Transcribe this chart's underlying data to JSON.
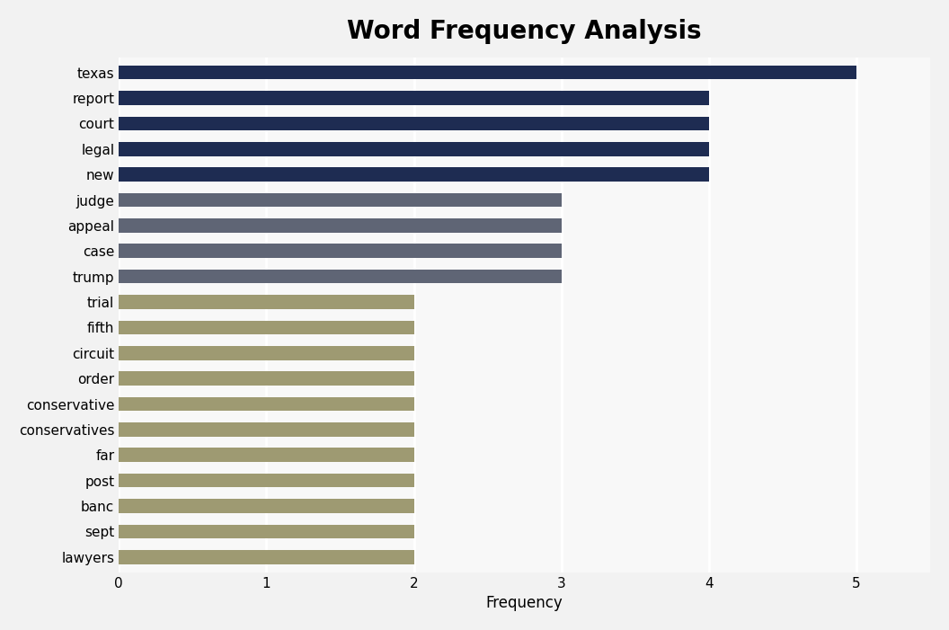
{
  "title": "Word Frequency Analysis",
  "xlabel": "Frequency",
  "categories": [
    "lawyers",
    "sept",
    "banc",
    "post",
    "far",
    "conservatives",
    "conservative",
    "order",
    "circuit",
    "fifth",
    "trial",
    "trump",
    "case",
    "appeal",
    "judge",
    "new",
    "legal",
    "court",
    "report",
    "texas"
  ],
  "values": [
    2,
    2,
    2,
    2,
    2,
    2,
    2,
    2,
    2,
    2,
    2,
    3,
    3,
    3,
    3,
    4,
    4,
    4,
    4,
    5
  ],
  "bar_colors": [
    "#9e9a72",
    "#9e9a72",
    "#9e9a72",
    "#9e9a72",
    "#9e9a72",
    "#9e9a72",
    "#9e9a72",
    "#9e9a72",
    "#9e9a72",
    "#9e9a72",
    "#9e9a72",
    "#5f6575",
    "#5f6575",
    "#5f6575",
    "#5f6575",
    "#1e2c52",
    "#1e2c52",
    "#1e2c52",
    "#1e2c52",
    "#1e2c52"
  ],
  "xlim": [
    0,
    5.5
  ],
  "xticks": [
    0,
    1,
    2,
    3,
    4,
    5
  ],
  "background_color": "#f2f2f2",
  "plot_background_color": "#f8f8f8",
  "title_fontsize": 20,
  "title_fontweight": "bold",
  "bar_height": 0.55,
  "grid_color": "#ffffff",
  "grid_linewidth": 2.0,
  "tick_fontsize": 11,
  "label_fontsize": 12
}
